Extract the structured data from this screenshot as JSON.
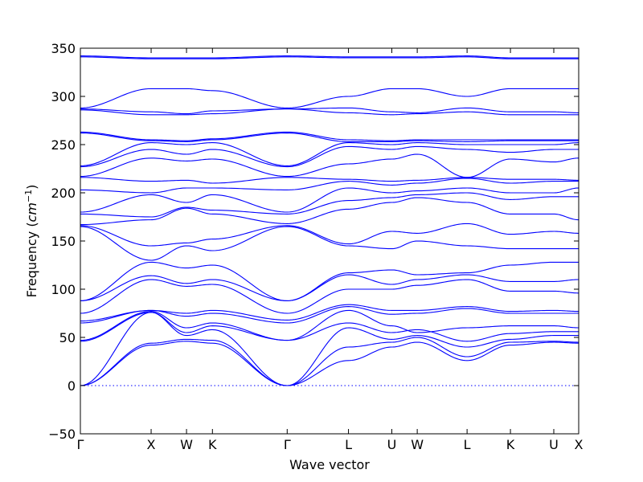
{
  "chart_data": {
    "type": "line",
    "title": "",
    "xlabel": "Wave vector",
    "ylabel_prefix": "Frequency (",
    "ylabel_unit": "cm",
    "ylabel_exp": "−1",
    "ylabel_suffix": ")",
    "ylim": [
      -50,
      350
    ],
    "yticks": [
      -50,
      0,
      50,
      100,
      150,
      200,
      250,
      300,
      350
    ],
    "ytick_labels": [
      "−50",
      "0",
      "50",
      "100",
      "150",
      "200",
      "250",
      "300",
      "350"
    ],
    "grid": false,
    "xlim": [
      0,
      1
    ],
    "high_symmetry_points": [
      {
        "label": "Γ",
        "x": 0.0
      },
      {
        "label": "X",
        "x": 0.142
      },
      {
        "label": "W",
        "x": 0.213
      },
      {
        "label": "K",
        "x": 0.265
      },
      {
        "label": "Γ",
        "x": 0.415
      },
      {
        "label": "L",
        "x": 0.538
      },
      {
        "label": "U",
        "x": 0.625
      },
      {
        "label": "W",
        "x": 0.676
      },
      {
        "label": "L",
        "x": 0.776
      },
      {
        "label": "K",
        "x": 0.863
      },
      {
        "label": "U",
        "x": 0.95
      },
      {
        "label": "X",
        "x": 1.0
      }
    ],
    "series": [
      {
        "values": [
          0,
          42,
          46,
          44,
          0,
          26,
          40,
          45,
          26,
          42,
          45,
          44
        ]
      },
      {
        "values": [
          0,
          44,
          48,
          47,
          0,
          40,
          45,
          50,
          30,
          45,
          46,
          45
        ]
      },
      {
        "values": [
          0,
          76,
          52,
          58,
          0,
          60,
          48,
          52,
          40,
          48,
          52,
          52
        ]
      },
      {
        "values": [
          46,
          76,
          55,
          62,
          47,
          65,
          55,
          58,
          46,
          54,
          56,
          56
        ]
      },
      {
        "values": [
          47,
          77,
          60,
          65,
          47,
          78,
          62,
          55,
          60,
          62,
          62,
          60
        ]
      },
      {
        "values": [
          65,
          78,
          72,
          75,
          65,
          82,
          74,
          75,
          80,
          75,
          75,
          75
        ]
      },
      {
        "values": [
          67,
          78,
          75,
          78,
          68,
          84,
          78,
          78,
          82,
          77,
          78,
          77
        ]
      },
      {
        "values": [
          75,
          110,
          103,
          105,
          75,
          100,
          100,
          104,
          110,
          98,
          98,
          96
        ]
      },
      {
        "values": [
          88,
          114,
          106,
          110,
          88,
          115,
          105,
          110,
          115,
          108,
          108,
          110
        ]
      },
      {
        "values": [
          88,
          128,
          122,
          125,
          88,
          117,
          120,
          115,
          117,
          125,
          128,
          128
        ]
      },
      {
        "values": [
          165,
          130,
          145,
          140,
          165,
          145,
          142,
          150,
          145,
          142,
          142,
          142
        ]
      },
      {
        "values": [
          166,
          145,
          148,
          152,
          166,
          147,
          160,
          158,
          168,
          157,
          160,
          158
        ]
      },
      {
        "values": [
          167,
          172,
          184,
          178,
          168,
          183,
          190,
          195,
          190,
          178,
          178,
          172
        ]
      },
      {
        "values": [
          178,
          175,
          185,
          182,
          178,
          192,
          195,
          198,
          200,
          193,
          196,
          196
        ]
      },
      {
        "values": [
          180,
          198,
          190,
          198,
          180,
          205,
          200,
          202,
          205,
          200,
          200,
          205
        ]
      },
      {
        "values": [
          203,
          200,
          205,
          205,
          203,
          212,
          208,
          210,
          215,
          210,
          212,
          212
        ]
      },
      {
        "values": [
          216,
          212,
          213,
          210,
          216,
          214,
          212,
          213,
          216,
          214,
          214,
          213
        ]
      },
      {
        "values": [
          217,
          236,
          233,
          235,
          217,
          230,
          235,
          240,
          216,
          235,
          232,
          236
        ]
      },
      {
        "values": [
          227,
          245,
          240,
          245,
          227,
          248,
          245,
          248,
          245,
          242,
          245,
          245
        ]
      },
      {
        "values": [
          228,
          252,
          250,
          252,
          228,
          252,
          250,
          252,
          250,
          250,
          250,
          252
        ]
      },
      {
        "values": [
          262,
          254,
          253,
          255,
          262,
          253,
          253,
          254,
          253,
          254,
          254,
          254
        ]
      },
      {
        "values": [
          263,
          255,
          254,
          256,
          263,
          255,
          254,
          255,
          255,
          255,
          255,
          255
        ]
      },
      {
        "values": [
          286,
          281,
          281,
          282,
          287,
          283,
          281,
          282,
          284,
          281,
          281,
          281
        ]
      },
      {
        "values": [
          287,
          284,
          282,
          285,
          287,
          288,
          284,
          283,
          288,
          284,
          284,
          283
        ]
      },
      {
        "values": [
          288,
          308,
          308,
          306,
          288,
          300,
          308,
          308,
          300,
          308,
          308,
          308
        ]
      },
      {
        "values": [
          341,
          339,
          339,
          339,
          341,
          340,
          340,
          340,
          341,
          339,
          339,
          339
        ]
      },
      {
        "values": [
          342,
          340,
          340,
          340,
          342,
          341,
          341,
          341,
          342,
          340,
          340,
          340
        ]
      }
    ]
  }
}
